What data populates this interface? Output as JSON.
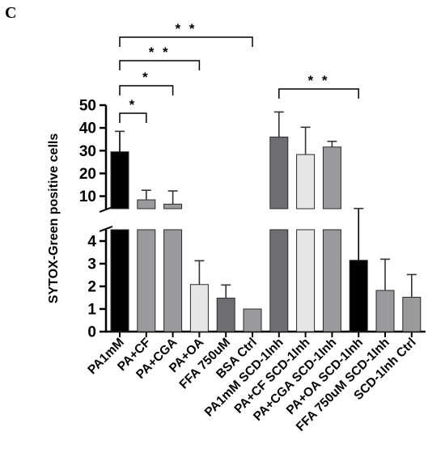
{
  "panel_label": "C",
  "chart_data": {
    "type": "bar",
    "ylabel": "SYTOX-Green positive cells",
    "xlabel": "",
    "y_axis_break": {
      "lower_range": [
        0,
        4.5
      ],
      "upper_range": [
        4.5,
        50
      ]
    },
    "lower_ticks": [
      0,
      1,
      2,
      3,
      4
    ],
    "upper_ticks": [
      10,
      20,
      30,
      40,
      50
    ],
    "grid": false,
    "categories": [
      "PA1mM",
      "PA+CF",
      "PA+CGA",
      "PA+OA",
      "FFA 750uM",
      "BSA Ctrl",
      "PA1mM SCD-1Inh",
      "PA+CF SCD-1Inh",
      "PA+CGA SCD-1Inh",
      "PA+OA SCD-1Inh",
      "FFA 750uM SCD-1Inh",
      "SCD-1Inh Ctrl"
    ],
    "values": [
      29.5,
      8.4,
      6.5,
      2.08,
      1.48,
      1.0,
      36.0,
      28.3,
      31.6,
      3.15,
      1.82,
      1.52
    ],
    "errors": [
      9.0,
      4.2,
      5.8,
      1.05,
      0.58,
      0.0,
      11.0,
      12.0,
      2.5,
      1.45,
      1.38,
      1.0
    ],
    "colors": [
      "#000000",
      "#9a9a9c",
      "#9a9a9c",
      "#e6e6e6",
      "#6e6e70",
      "#9a9a9c",
      "#6e6e70",
      "#e6e6e6",
      "#9a9a9c",
      "#000000",
      "#9a9a9c",
      "#9a9a9c"
    ],
    "significance": [
      {
        "from": "PA1mM",
        "to": "PA+CF",
        "label": "*"
      },
      {
        "from": "PA1mM",
        "to": "PA+CGA",
        "label": "*"
      },
      {
        "from": "PA1mM",
        "to": "PA+OA",
        "label": "* *"
      },
      {
        "from": "PA1mM",
        "to": "BSA Ctrl",
        "label": "* *"
      },
      {
        "from": "PA1mM SCD-1Inh",
        "to": "PA+OA SCD-1Inh",
        "label": "* *"
      }
    ]
  }
}
